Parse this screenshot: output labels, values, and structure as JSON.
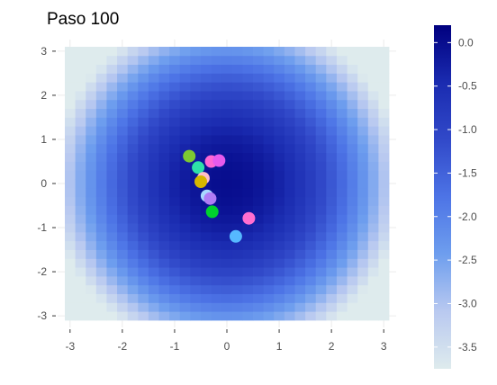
{
  "chart_data": {
    "type": "heatmap",
    "title": "Paso 100",
    "xlabel": "",
    "ylabel": "",
    "xlim": [
      -3.1,
      3.1
    ],
    "ylim": [
      -3.1,
      3.1
    ],
    "x_ticks": [
      "-3",
      "-2",
      "-1",
      "0",
      "1",
      "2",
      "3"
    ],
    "y_ticks": [
      "3",
      "2",
      "1",
      "0",
      "-1",
      "-2",
      "-3"
    ],
    "grid": true,
    "heatmap": {
      "surface": "-(x^2/3 + y^2/4)",
      "grid_range": [
        -3,
        3
      ],
      "grid_steps": 31,
      "value_range": [
        -3.75,
        0.2
      ],
      "colors": [
        "#deebed",
        "#b9c9f0",
        "#6e9eee",
        "#4d74e6",
        "#3149c9",
        "#1a2bb0",
        "#00007f"
      ],
      "legend_ticks": [
        "0.0",
        "-0.5",
        "-1.0",
        "-1.5",
        "-2.0",
        "-2.5",
        "-3.0",
        "-3.5"
      ],
      "legend_tick_values": [
        0.0,
        -0.5,
        -1.0,
        -1.5,
        -2.0,
        -2.5,
        -3.0,
        -3.5
      ],
      "legend_position": "right"
    },
    "points": [
      {
        "x": -0.72,
        "y": 0.62,
        "color": "#7dc832"
      },
      {
        "x": -0.55,
        "y": 0.36,
        "color": "#2ee0a8"
      },
      {
        "x": -0.45,
        "y": 0.12,
        "color": "#ffc0cb"
      },
      {
        "x": -0.5,
        "y": 0.04,
        "color": "#d6b700"
      },
      {
        "x": -0.3,
        "y": 0.5,
        "color": "#ff66d4"
      },
      {
        "x": -0.15,
        "y": 0.52,
        "color": "#e75aed"
      },
      {
        "x": -0.38,
        "y": -0.28,
        "color": "#a8d8ff"
      },
      {
        "x": -0.32,
        "y": -0.34,
        "color": "#b07cf5"
      },
      {
        "x": -0.28,
        "y": -0.64,
        "color": "#00d12d"
      },
      {
        "x": 0.42,
        "y": -0.79,
        "color": "#ff6ed0"
      },
      {
        "x": 0.17,
        "y": -1.2,
        "color": "#56b8ff"
      }
    ]
  }
}
